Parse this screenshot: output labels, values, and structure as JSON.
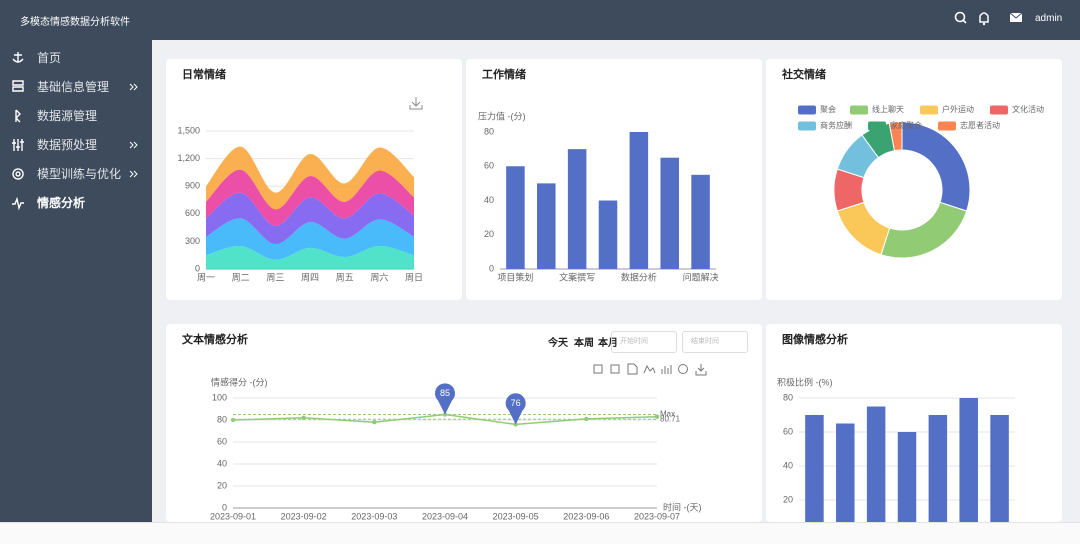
{
  "header": {
    "title": "多模态情感数据分析软件",
    "user": "admin"
  },
  "sidebar": {
    "items": [
      "首页",
      "基础信息管理",
      "数据源管理",
      "数据预处理",
      "模型训练与优化",
      "情感分析"
    ],
    "active_item": 5
  },
  "filters": {
    "quick_ranges": [
      "今天",
      "本周",
      "本月"
    ],
    "start_placeholder": "开始时间",
    "end_placeholder": "结束时间"
  },
  "chart_data": [
    {
      "type": "area",
      "stacked": true,
      "smooth": true,
      "title": "日常情绪",
      "categories": [
        "周一",
        "周二",
        "周三",
        "周四",
        "周五",
        "周六",
        "周日"
      ],
      "series": [
        {
          "color": "#3ee0c3",
          "values": [
            150,
            250,
            100,
            230,
            130,
            250,
            150
          ]
        },
        {
          "color": "#35b4fb",
          "values": [
            200,
            300,
            170,
            280,
            200,
            290,
            200
          ]
        },
        {
          "color": "#7a5cf0",
          "values": [
            200,
            280,
            200,
            270,
            220,
            280,
            230
          ]
        },
        {
          "color": "#ea3c9e",
          "values": [
            180,
            250,
            180,
            230,
            180,
            250,
            200
          ]
        },
        {
          "color": "#f9a63e",
          "values": [
            170,
            250,
            180,
            240,
            200,
            250,
            220
          ]
        }
      ],
      "ylim": [
        0,
        1500
      ],
      "yticks": [
        0,
        300,
        600,
        900,
        {
          "value": 1200,
          "label": "1,200"
        },
        {
          "value": 1500,
          "label": "1,500"
        }
      ],
      "grid": true
    },
    {
      "type": "bar",
      "title": "工作情绪",
      "y_axis_label": "压力值 -(分)",
      "categories": [
        "项目策划",
        null,
        "文案撰写",
        null,
        "数据分析",
        null,
        "问题解决"
      ],
      "values": [
        60,
        50,
        70,
        40,
        80,
        65,
        55
      ],
      "color": "#5470c6",
      "ylim": [
        0,
        80
      ],
      "yticks": [
        0,
        20,
        40,
        60,
        80
      ],
      "grid": false
    },
    {
      "type": "pie",
      "title": "社交情绪",
      "donut": true,
      "categories": [
        "聚会",
        "线上聊天",
        "户外运动",
        "文化活动",
        "商务应酬",
        "家庭聚会",
        "志愿者活动"
      ],
      "values": [
        30,
        25,
        15,
        10,
        10,
        7,
        3
      ],
      "colors": [
        "#5470c6",
        "#91cc75",
        "#fac858",
        "#ee6666",
        "#73c0de",
        "#3ba272",
        "#fc8452"
      ]
    },
    {
      "type": "line",
      "title": "文本情感分析",
      "y_axis_label": "情感得分 -(分)",
      "x_axis_label": "时间 -(天)",
      "categories": [
        "2023-09-01",
        "2023-09-02",
        "2023-09-03",
        "2023-09-04",
        "2023-09-05",
        "2023-09-06",
        "2023-09-07"
      ],
      "values": [
        80,
        82,
        78,
        85,
        76,
        81,
        83
      ],
      "color": "#91cc75",
      "pin_color": "#5470c6",
      "mark_points": [
        "max",
        "min"
      ],
      "mark_lines": [
        {
          "label": "Max",
          "value": 85
        },
        {
          "value": 80.71
        }
      ],
      "ylim": [
        0,
        100
      ],
      "yticks": [
        0,
        20,
        40,
        60,
        80,
        100
      ],
      "grid": true
    },
    {
      "type": "bar",
      "title": "图像情感分析",
      "y_axis_label": "积极比例 -(%)",
      "categories": [
        null,
        null,
        null,
        null,
        null,
        null,
        null
      ],
      "values": [
        70,
        65,
        75,
        60,
        70,
        80,
        70
      ],
      "color": "#5470c6",
      "ylim": [
        0,
        80
      ],
      "yticks": [
        20,
        40,
        60,
        80
      ],
      "grid": true
    }
  ]
}
